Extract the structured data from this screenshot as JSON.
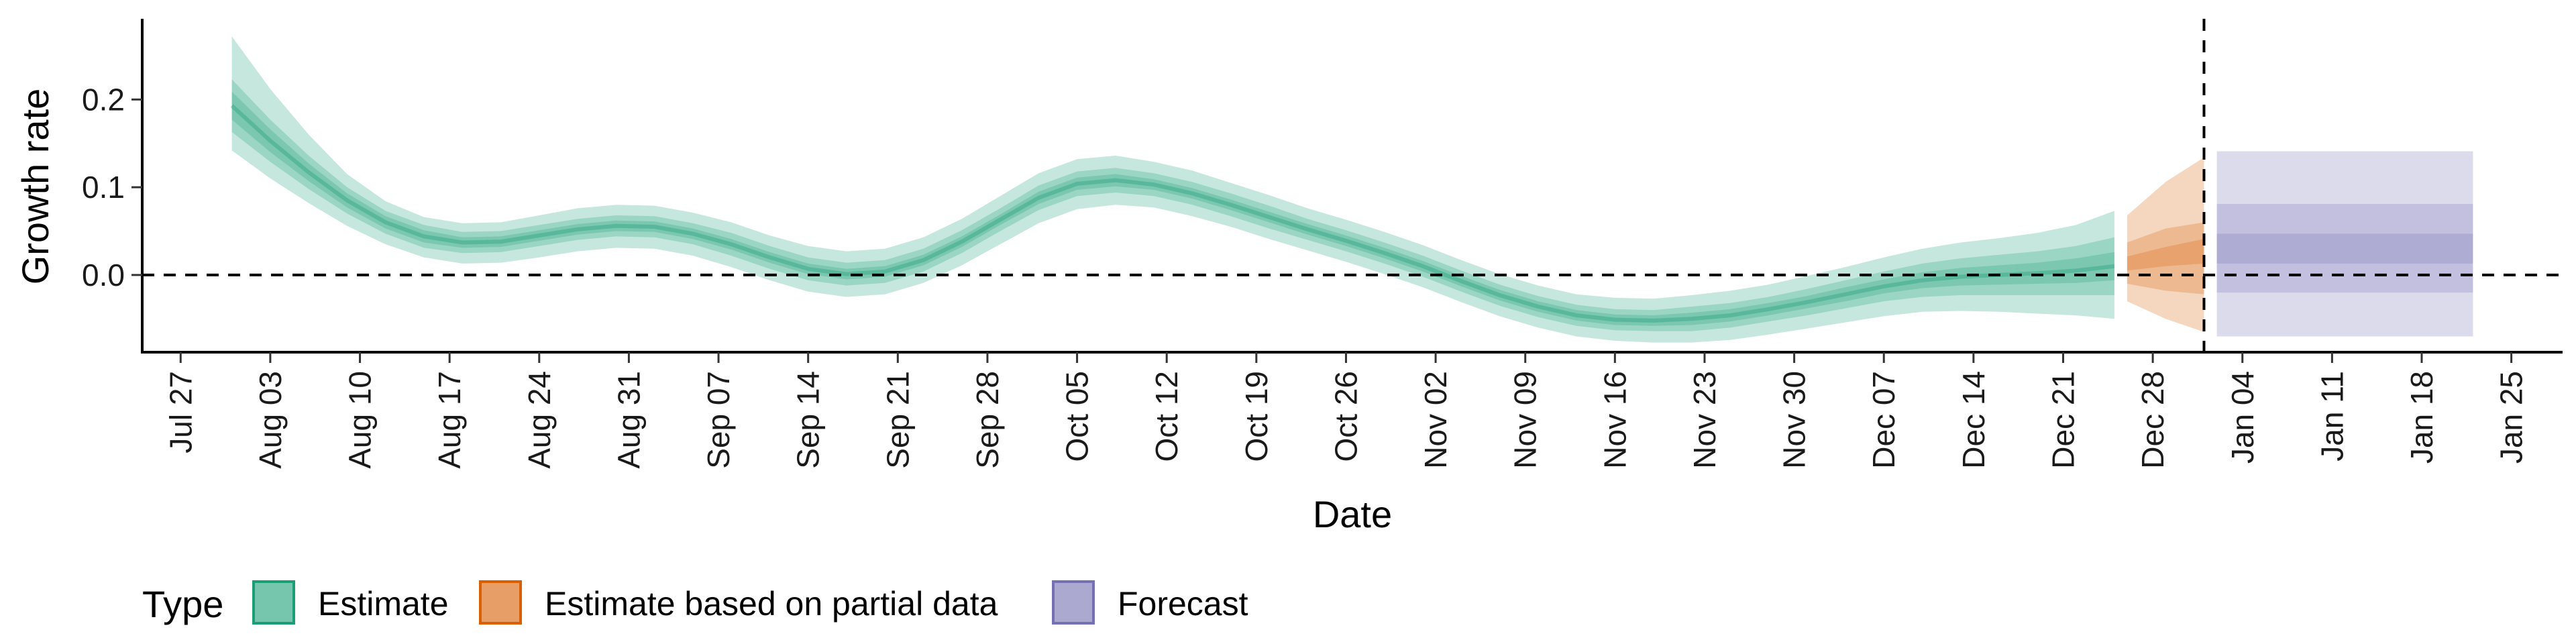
{
  "chart_data": {
    "type": "area",
    "xlabel": "Date",
    "ylabel": "Growth rate",
    "x_ticks": [
      "2020-07-27",
      "2020-08-03",
      "2020-08-10",
      "2020-08-17",
      "2020-08-24",
      "2020-08-31",
      "2020-09-07",
      "2020-09-14",
      "2020-09-21",
      "2020-09-28",
      "2020-10-05",
      "2020-10-12",
      "2020-10-19",
      "2020-10-26",
      "2020-11-02",
      "2020-11-09",
      "2020-11-16",
      "2020-11-23",
      "2020-11-30",
      "2020-12-07",
      "2020-12-14",
      "2020-12-21",
      "2020-12-28",
      "2021-01-04",
      "2021-01-11",
      "2021-01-18",
      "2021-01-25"
    ],
    "x_tick_labels": [
      "Jul 27",
      "Aug 03",
      "Aug 10",
      "Aug 17",
      "Aug 24",
      "Aug 31",
      "Sep 07",
      "Sep 14",
      "Sep 21",
      "Sep 28",
      "Oct 05",
      "Oct 12",
      "Oct 19",
      "Oct 26",
      "Nov 02",
      "Nov 09",
      "Nov 16",
      "Nov 23",
      "Nov 30",
      "Dec 07",
      "Dec 14",
      "Dec 21",
      "Dec 28",
      "Jan 04",
      "Jan 11",
      "Jan 18",
      "Jan 25"
    ],
    "y_ticks": [
      0.0,
      0.1,
      0.2
    ],
    "y_tick_labels": [
      "0.0",
      "0.1",
      "0.2"
    ],
    "xlim": [
      "2020-07-24",
      "2021-01-29"
    ],
    "ylim": [
      -0.088,
      0.292
    ],
    "reference_lines": {
      "horizontal_y": 0.0,
      "vertical_x": "2021-01-01"
    },
    "legend": {
      "title": "Type",
      "position": "bottom-left",
      "entries": [
        "Estimate",
        "Estimate based on partial data",
        "Forecast"
      ]
    },
    "colors": {
      "Estimate": "#1b9e77",
      "Estimate based on partial data": "#d95f02",
      "Forecast": "#7570b3"
    },
    "series": [
      {
        "name": "Estimate",
        "dates": [
          "2020-07-31",
          "2020-08-03",
          "2020-08-06",
          "2020-08-09",
          "2020-08-12",
          "2020-08-15",
          "2020-08-18",
          "2020-08-21",
          "2020-08-24",
          "2020-08-27",
          "2020-08-30",
          "2020-09-02",
          "2020-09-05",
          "2020-09-08",
          "2020-09-11",
          "2020-09-14",
          "2020-09-17",
          "2020-09-20",
          "2020-09-23",
          "2020-09-26",
          "2020-09-29",
          "2020-10-02",
          "2020-10-05",
          "2020-10-08",
          "2020-10-11",
          "2020-10-14",
          "2020-10-17",
          "2020-10-20",
          "2020-10-23",
          "2020-10-26",
          "2020-10-29",
          "2020-11-01",
          "2020-11-04",
          "2020-11-07",
          "2020-11-10",
          "2020-11-13",
          "2020-11-16",
          "2020-11-19",
          "2020-11-22",
          "2020-11-25",
          "2020-11-28",
          "2020-12-01",
          "2020-12-04",
          "2020-12-07",
          "2020-12-10",
          "2020-12-13",
          "2020-12-16",
          "2020-12-19",
          "2020-12-22",
          "2020-12-25"
        ],
        "median": [
          0.193,
          0.153,
          0.117,
          0.085,
          0.06,
          0.044,
          0.037,
          0.038,
          0.045,
          0.052,
          0.056,
          0.055,
          0.047,
          0.035,
          0.02,
          0.007,
          0.001,
          0.004,
          0.017,
          0.038,
          0.063,
          0.088,
          0.104,
          0.108,
          0.103,
          0.093,
          0.08,
          0.066,
          0.052,
          0.039,
          0.025,
          0.01,
          -0.007,
          -0.023,
          -0.036,
          -0.046,
          -0.051,
          -0.052,
          -0.05,
          -0.046,
          -0.039,
          -0.031,
          -0.022,
          -0.013,
          -0.006,
          -0.002,
          0.0,
          0.002,
          0.005,
          0.01
        ],
        "lower_20": [
          0.177,
          0.14,
          0.107,
          0.077,
          0.053,
          0.037,
          0.031,
          0.032,
          0.039,
          0.046,
          0.05,
          0.049,
          0.041,
          0.029,
          0.014,
          0.001,
          -0.005,
          -0.002,
          0.011,
          0.032,
          0.057,
          0.081,
          0.097,
          0.101,
          0.097,
          0.087,
          0.074,
          0.06,
          0.046,
          0.033,
          0.019,
          0.004,
          -0.013,
          -0.029,
          -0.042,
          -0.052,
          -0.057,
          -0.058,
          -0.057,
          -0.053,
          -0.046,
          -0.038,
          -0.03,
          -0.021,
          -0.015,
          -0.012,
          -0.011,
          -0.01,
          -0.009,
          -0.006
        ],
        "upper_20": [
          0.209,
          0.166,
          0.127,
          0.093,
          0.067,
          0.051,
          0.043,
          0.044,
          0.051,
          0.058,
          0.062,
          0.061,
          0.053,
          0.041,
          0.026,
          0.013,
          0.007,
          0.01,
          0.023,
          0.044,
          0.069,
          0.095,
          0.111,
          0.115,
          0.109,
          0.099,
          0.086,
          0.072,
          0.058,
          0.045,
          0.031,
          0.016,
          -0.001,
          -0.017,
          -0.03,
          -0.04,
          -0.045,
          -0.046,
          -0.043,
          -0.039,
          -0.032,
          -0.024,
          -0.014,
          -0.005,
          0.003,
          0.008,
          0.011,
          0.014,
          0.019,
          0.026
        ],
        "lower_50": [
          0.163,
          0.129,
          0.098,
          0.07,
          0.047,
          0.031,
          0.025,
          0.026,
          0.033,
          0.04,
          0.044,
          0.043,
          0.035,
          0.022,
          0.007,
          -0.006,
          -0.012,
          -0.009,
          0.004,
          0.025,
          0.05,
          0.074,
          0.09,
          0.094,
          0.09,
          0.08,
          0.067,
          0.053,
          0.04,
          0.027,
          0.013,
          -0.002,
          -0.019,
          -0.035,
          -0.048,
          -0.058,
          -0.063,
          -0.064,
          -0.064,
          -0.06,
          -0.053,
          -0.046,
          -0.038,
          -0.03,
          -0.025,
          -0.023,
          -0.023,
          -0.023,
          -0.023,
          -0.023
        ],
        "upper_50": [
          0.223,
          0.177,
          0.136,
          0.1,
          0.073,
          0.057,
          0.049,
          0.05,
          0.057,
          0.064,
          0.068,
          0.067,
          0.059,
          0.048,
          0.033,
          0.02,
          0.014,
          0.017,
          0.03,
          0.051,
          0.076,
          0.102,
          0.118,
          0.122,
          0.116,
          0.106,
          0.093,
          0.079,
          0.064,
          0.051,
          0.037,
          0.022,
          0.005,
          -0.011,
          -0.024,
          -0.034,
          -0.039,
          -0.04,
          -0.036,
          -0.032,
          -0.025,
          -0.016,
          -0.006,
          0.004,
          0.013,
          0.019,
          0.023,
          0.027,
          0.033,
          0.043
        ],
        "lower_90": [
          0.142,
          0.11,
          0.082,
          0.056,
          0.035,
          0.02,
          0.013,
          0.014,
          0.02,
          0.027,
          0.031,
          0.03,
          0.022,
          0.009,
          -0.006,
          -0.019,
          -0.025,
          -0.022,
          -0.009,
          0.011,
          0.035,
          0.059,
          0.075,
          0.08,
          0.077,
          0.067,
          0.055,
          0.041,
          0.028,
          0.015,
          0.001,
          -0.014,
          -0.031,
          -0.047,
          -0.06,
          -0.07,
          -0.075,
          -0.077,
          -0.077,
          -0.074,
          -0.068,
          -0.061,
          -0.054,
          -0.047,
          -0.042,
          -0.041,
          -0.042,
          -0.044,
          -0.046,
          -0.05
        ],
        "upper_90": [
          0.272,
          0.212,
          0.16,
          0.115,
          0.084,
          0.066,
          0.059,
          0.06,
          0.068,
          0.076,
          0.08,
          0.079,
          0.071,
          0.06,
          0.045,
          0.033,
          0.027,
          0.03,
          0.043,
          0.064,
          0.09,
          0.116,
          0.132,
          0.136,
          0.129,
          0.119,
          0.105,
          0.091,
          0.076,
          0.063,
          0.049,
          0.034,
          0.017,
          0.001,
          -0.012,
          -0.022,
          -0.026,
          -0.027,
          -0.023,
          -0.018,
          -0.011,
          -0.001,
          0.009,
          0.02,
          0.03,
          0.037,
          0.042,
          0.048,
          0.057,
          0.073
        ]
      },
      {
        "name": "Estimate based on partial data",
        "dates": [
          "2020-12-26",
          "2020-12-29",
          "2021-01-01"
        ],
        "median": [
          0.013,
          0.021,
          0.027
        ],
        "lower_20": [
          0.005,
          0.01,
          0.013
        ],
        "upper_20": [
          0.021,
          0.032,
          0.041
        ],
        "lower_50": [
          -0.01,
          -0.018,
          -0.022
        ],
        "upper_50": [
          0.037,
          0.053,
          0.06
        ],
        "lower_90": [
          -0.03,
          -0.05,
          -0.065
        ],
        "upper_90": [
          0.068,
          0.106,
          0.134
        ]
      },
      {
        "name": "Forecast",
        "dates": [
          "2021-01-02",
          "2021-01-22"
        ],
        "median": [
          0.015,
          0.015
        ],
        "lower_20": [
          0.013,
          0.013
        ],
        "upper_20": [
          0.047,
          0.047
        ],
        "lower_50": [
          -0.02,
          -0.02
        ],
        "upper_50": [
          0.081,
          0.081
        ],
        "lower_90": [
          -0.07,
          -0.07
        ],
        "upper_90": [
          0.141,
          0.141
        ]
      }
    ]
  }
}
